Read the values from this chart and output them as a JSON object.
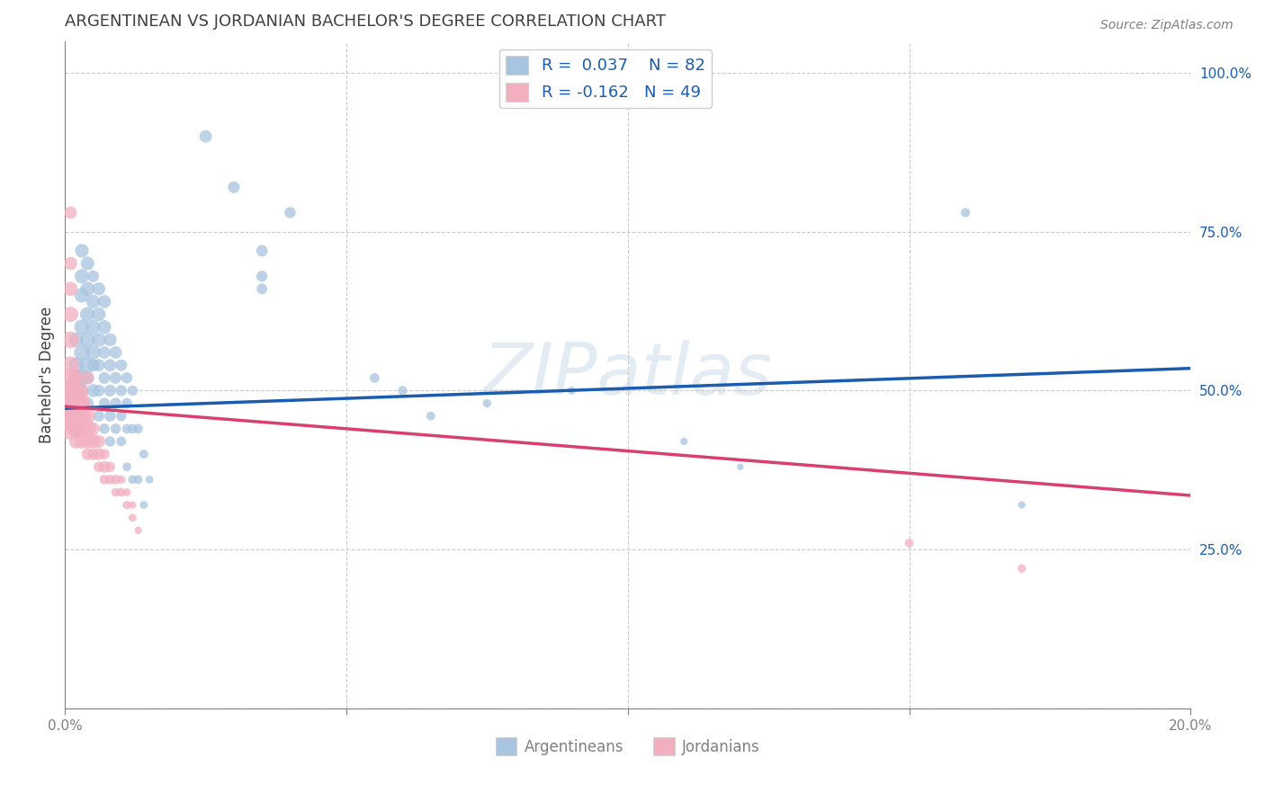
{
  "title": "ARGENTINEAN VS JORDANIAN BACHELOR'S DEGREE CORRELATION CHART",
  "source": "Source: ZipAtlas.com",
  "ylabel": "Bachelor's Degree",
  "xlim": [
    0.0,
    0.2
  ],
  "ylim": [
    0.0,
    1.05
  ],
  "yticks": [
    0.0,
    0.25,
    0.5,
    0.75,
    1.0
  ],
  "ytick_labels": [
    "",
    "25.0%",
    "50.0%",
    "75.0%",
    "100.0%"
  ],
  "xticks": [
    0.0,
    0.05,
    0.1,
    0.15,
    0.2
  ],
  "xtick_labels": [
    "0.0%",
    "",
    "",
    "",
    "20.0%"
  ],
  "blue_R": 0.037,
  "blue_N": 82,
  "pink_R": -0.162,
  "pink_N": 49,
  "blue_color": "#a8c4e0",
  "pink_color": "#f2afc0",
  "blue_line_color": "#1a5cb0",
  "pink_line_color": "#d94070",
  "legend_blue_fill": "#a8c4e0",
  "legend_pink_fill": "#f2afc0",
  "watermark": "ZIPatlas",
  "background_color": "#ffffff",
  "grid_color": "#cccccc",
  "title_color": "#404040",
  "source_color": "#808080",
  "axis_color": "#808080",
  "argentinean_label": "Argentineans",
  "jordanian_label": "Jordanians",
  "blue_line_x": [
    0.0,
    0.2
  ],
  "blue_line_y": [
    0.472,
    0.535
  ],
  "pink_line_x": [
    0.0,
    0.2
  ],
  "pink_line_y": [
    0.475,
    0.335
  ],
  "blue_points": [
    [
      0.001,
      0.48
    ],
    [
      0.001,
      0.5
    ],
    [
      0.001,
      0.46
    ],
    [
      0.002,
      0.5
    ],
    [
      0.002,
      0.48
    ],
    [
      0.002,
      0.52
    ],
    [
      0.002,
      0.46
    ],
    [
      0.002,
      0.54
    ],
    [
      0.002,
      0.44
    ],
    [
      0.002,
      0.58
    ],
    [
      0.003,
      0.52
    ],
    [
      0.003,
      0.56
    ],
    [
      0.003,
      0.6
    ],
    [
      0.003,
      0.65
    ],
    [
      0.003,
      0.68
    ],
    [
      0.003,
      0.72
    ],
    [
      0.003,
      0.5
    ],
    [
      0.004,
      0.54
    ],
    [
      0.004,
      0.58
    ],
    [
      0.004,
      0.62
    ],
    [
      0.004,
      0.66
    ],
    [
      0.004,
      0.7
    ],
    [
      0.004,
      0.52
    ],
    [
      0.004,
      0.48
    ],
    [
      0.005,
      0.56
    ],
    [
      0.005,
      0.6
    ],
    [
      0.005,
      0.64
    ],
    [
      0.005,
      0.5
    ],
    [
      0.005,
      0.54
    ],
    [
      0.005,
      0.68
    ],
    [
      0.006,
      0.58
    ],
    [
      0.006,
      0.62
    ],
    [
      0.006,
      0.66
    ],
    [
      0.006,
      0.54
    ],
    [
      0.006,
      0.5
    ],
    [
      0.006,
      0.46
    ],
    [
      0.007,
      0.6
    ],
    [
      0.007,
      0.64
    ],
    [
      0.007,
      0.56
    ],
    [
      0.007,
      0.52
    ],
    [
      0.007,
      0.48
    ],
    [
      0.007,
      0.44
    ],
    [
      0.008,
      0.58
    ],
    [
      0.008,
      0.54
    ],
    [
      0.008,
      0.5
    ],
    [
      0.008,
      0.46
    ],
    [
      0.008,
      0.42
    ],
    [
      0.009,
      0.56
    ],
    [
      0.009,
      0.52
    ],
    [
      0.009,
      0.48
    ],
    [
      0.009,
      0.44
    ],
    [
      0.01,
      0.54
    ],
    [
      0.01,
      0.5
    ],
    [
      0.01,
      0.46
    ],
    [
      0.01,
      0.42
    ],
    [
      0.011,
      0.52
    ],
    [
      0.011,
      0.48
    ],
    [
      0.011,
      0.44
    ],
    [
      0.011,
      0.38
    ],
    [
      0.012,
      0.5
    ],
    [
      0.012,
      0.44
    ],
    [
      0.012,
      0.36
    ],
    [
      0.013,
      0.44
    ],
    [
      0.013,
      0.36
    ],
    [
      0.014,
      0.4
    ],
    [
      0.014,
      0.32
    ],
    [
      0.015,
      0.36
    ],
    [
      0.025,
      0.9
    ],
    [
      0.03,
      0.82
    ],
    [
      0.035,
      0.72
    ],
    [
      0.035,
      0.68
    ],
    [
      0.035,
      0.66
    ],
    [
      0.04,
      0.78
    ],
    [
      0.055,
      0.52
    ],
    [
      0.06,
      0.5
    ],
    [
      0.065,
      0.46
    ],
    [
      0.075,
      0.48
    ],
    [
      0.09,
      0.5
    ],
    [
      0.11,
      0.42
    ],
    [
      0.12,
      0.38
    ],
    [
      0.16,
      0.78
    ],
    [
      0.17,
      0.32
    ]
  ],
  "pink_points": [
    [
      0.001,
      0.48
    ],
    [
      0.001,
      0.46
    ],
    [
      0.001,
      0.5
    ],
    [
      0.001,
      0.44
    ],
    [
      0.001,
      0.52
    ],
    [
      0.001,
      0.54
    ],
    [
      0.001,
      0.58
    ],
    [
      0.001,
      0.62
    ],
    [
      0.001,
      0.66
    ],
    [
      0.001,
      0.7
    ],
    [
      0.001,
      0.78
    ],
    [
      0.002,
      0.46
    ],
    [
      0.002,
      0.48
    ],
    [
      0.002,
      0.44
    ],
    [
      0.002,
      0.5
    ],
    [
      0.002,
      0.52
    ],
    [
      0.002,
      0.42
    ],
    [
      0.003,
      0.46
    ],
    [
      0.003,
      0.48
    ],
    [
      0.003,
      0.44
    ],
    [
      0.003,
      0.42
    ],
    [
      0.003,
      0.5
    ],
    [
      0.004,
      0.44
    ],
    [
      0.004,
      0.46
    ],
    [
      0.004,
      0.42
    ],
    [
      0.004,
      0.52
    ],
    [
      0.004,
      0.4
    ],
    [
      0.005,
      0.42
    ],
    [
      0.005,
      0.44
    ],
    [
      0.005,
      0.4
    ],
    [
      0.006,
      0.42
    ],
    [
      0.006,
      0.4
    ],
    [
      0.006,
      0.38
    ],
    [
      0.007,
      0.38
    ],
    [
      0.007,
      0.4
    ],
    [
      0.007,
      0.36
    ],
    [
      0.008,
      0.38
    ],
    [
      0.008,
      0.36
    ],
    [
      0.009,
      0.36
    ],
    [
      0.009,
      0.34
    ],
    [
      0.01,
      0.34
    ],
    [
      0.01,
      0.36
    ],
    [
      0.011,
      0.32
    ],
    [
      0.011,
      0.34
    ],
    [
      0.012,
      0.3
    ],
    [
      0.012,
      0.32
    ],
    [
      0.013,
      0.28
    ],
    [
      0.15,
      0.26
    ],
    [
      0.17,
      0.22
    ]
  ],
  "blue_point_sizes": [
    300,
    200,
    180,
    220,
    200,
    180,
    160,
    150,
    140,
    130,
    180,
    160,
    150,
    140,
    130,
    120,
    110,
    160,
    150,
    140,
    130,
    120,
    110,
    100,
    140,
    130,
    120,
    110,
    100,
    90,
    130,
    120,
    110,
    100,
    90,
    80,
    120,
    110,
    100,
    90,
    80,
    70,
    110,
    100,
    90,
    80,
    70,
    100,
    90,
    80,
    70,
    90,
    80,
    70,
    60,
    80,
    70,
    60,
    50,
    70,
    60,
    50,
    60,
    50,
    50,
    40,
    40,
    100,
    90,
    85,
    80,
    75,
    80,
    60,
    55,
    50,
    45,
    40,
    35,
    30,
    55,
    35
  ],
  "pink_point_sizes": [
    900,
    600,
    400,
    300,
    250,
    200,
    180,
    150,
    130,
    110,
    100,
    300,
    250,
    200,
    180,
    150,
    130,
    200,
    180,
    150,
    130,
    110,
    180,
    150,
    130,
    110,
    90,
    130,
    110,
    90,
    110,
    90,
    70,
    90,
    70,
    60,
    70,
    60,
    60,
    50,
    50,
    45,
    45,
    40,
    40,
    35,
    35,
    50,
    45
  ]
}
